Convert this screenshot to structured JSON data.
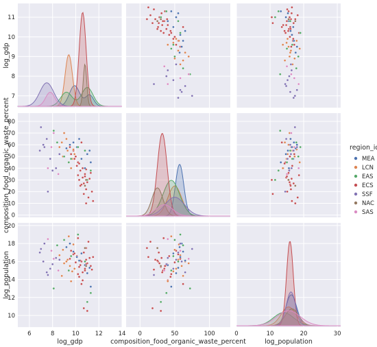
{
  "chart_data": {
    "type": "scatter",
    "layout": "pairplot",
    "style": "darkgrid",
    "grid": true,
    "legend": {
      "title": "region_id",
      "placement": "right",
      "entries": [
        {
          "name": "MEA",
          "color": "#4c72b0"
        },
        {
          "name": "LCN",
          "color": "#dd8452"
        },
        {
          "name": "EAS",
          "color": "#55a868"
        },
        {
          "name": "ECS",
          "color": "#c44e52"
        },
        {
          "name": "SSF",
          "color": "#8172b3"
        },
        {
          "name": "NAC",
          "color": "#937860"
        },
        {
          "name": "SAS",
          "color": "#da8bc3"
        }
      ]
    },
    "variables": [
      {
        "key": "log_gdp",
        "label": "log_gdp",
        "range": [
          5,
          14
        ],
        "ticks": [
          6,
          8,
          10,
          12,
          14
        ],
        "diag_ticks": [
          7,
          8,
          9,
          10,
          11
        ]
      },
      {
        "key": "waste",
        "label": "composition_food_organic_waste_percent",
        "range": [
          -20,
          130
        ],
        "ticks": [
          0,
          50,
          100
        ],
        "diag_ticks": [
          0,
          10,
          20,
          30,
          40,
          50,
          60,
          70,
          80
        ]
      },
      {
        "key": "log_population",
        "label": "log_population",
        "range": [
          0,
          31
        ],
        "ticks": [
          0,
          10,
          20,
          30
        ],
        "diag_ticks": [
          10,
          12,
          14,
          16,
          18,
          20
        ]
      }
    ],
    "row_ranges": [
      [
        6.4,
        11.7
      ],
      [
        -2,
        87
      ],
      [
        8.7,
        20.3
      ]
    ],
    "row_ticks": [
      [
        7,
        8,
        9,
        10,
        11
      ],
      [
        0,
        10,
        20,
        30,
        40,
        50,
        60,
        70,
        80
      ],
      [
        10,
        12,
        14,
        16,
        18,
        20
      ]
    ],
    "kde": [
      {
        "var": "log_gdp",
        "series": [
          {
            "name": "MEA",
            "peaks": [
              [
                9.9,
                0.22,
                0.45
              ],
              [
                11.2,
                0.12,
                0.35
              ]
            ]
          },
          {
            "name": "LCN",
            "peaks": [
              [
                9.4,
                0.55,
                0.32
              ]
            ]
          },
          {
            "name": "EAS",
            "peaks": [
              [
                9.2,
                0.15,
                0.5
              ],
              [
                11.0,
                0.2,
                0.5
              ]
            ]
          },
          {
            "name": "ECS",
            "peaks": [
              [
                10.6,
                1.0,
                0.3
              ]
            ]
          },
          {
            "name": "SSF",
            "peaks": [
              [
                7.5,
                0.25,
                0.6
              ]
            ]
          },
          {
            "name": "NAC",
            "peaks": [
              [
                10.8,
                0.45,
                0.15
              ]
            ]
          },
          {
            "name": "SAS",
            "peaks": [
              [
                7.8,
                0.15,
                0.4
              ]
            ]
          }
        ]
      },
      {
        "var": "waste",
        "series": [
          {
            "name": "MEA",
            "peaks": [
              [
                57,
                0.55,
                6
              ]
            ]
          },
          {
            "name": "LCN",
            "peaks": [
              [
                50,
                0.32,
                10
              ]
            ]
          },
          {
            "name": "EAS",
            "peaks": [
              [
                45,
                0.38,
                12
              ]
            ]
          },
          {
            "name": "ECS",
            "peaks": [
              [
                32,
                0.88,
                7
              ]
            ]
          },
          {
            "name": "SSF",
            "peaks": [
              [
                50,
                0.2,
                14
              ]
            ]
          },
          {
            "name": "NAC",
            "peaks": [
              [
                25,
                0.3,
                8
              ]
            ]
          },
          {
            "name": "SAS",
            "peaks": [
              [
                35,
                0.12,
                12
              ]
            ]
          }
        ]
      },
      {
        "var": "log_population",
        "series": [
          {
            "name": "MEA",
            "peaks": [
              [
                16.3,
                0.33,
                1.6
              ]
            ]
          },
          {
            "name": "LCN",
            "peaks": [
              [
                15.5,
                0.2,
                2.2
              ]
            ]
          },
          {
            "name": "EAS",
            "peaks": [
              [
                14.0,
                0.14,
                3.0
              ]
            ]
          },
          {
            "name": "ECS",
            "peaks": [
              [
                15.9,
                0.9,
                1.0
              ]
            ]
          },
          {
            "name": "SSF",
            "peaks": [
              [
                16.2,
                0.36,
                1.4
              ]
            ]
          },
          {
            "name": "NAC",
            "peaks": [
              [
                16.5,
                0.18,
                2.0
              ]
            ]
          },
          {
            "name": "SAS",
            "peaks": [
              [
                15.5,
                0.16,
                3.5
              ]
            ]
          }
        ]
      }
    ],
    "points": [
      {
        "region": "ECS",
        "log_gdp": 10.3,
        "waste": 30,
        "log_population": 15.4
      },
      {
        "region": "ECS",
        "log_gdp": 10.5,
        "waste": 26,
        "log_population": 16.0
      },
      {
        "region": "ECS",
        "log_gdp": 10.8,
        "waste": 35,
        "log_population": 15.2
      },
      {
        "region": "ECS",
        "log_gdp": 10.1,
        "waste": 42,
        "log_population": 16.6
      },
      {
        "region": "ECS",
        "log_gdp": 11.0,
        "waste": 28,
        "log_population": 15.8
      },
      {
        "region": "ECS",
        "log_gdp": 10.6,
        "waste": 32,
        "log_population": 14.8
      },
      {
        "region": "ECS",
        "log_gdp": 10.9,
        "waste": 22,
        "log_population": 16.2
      },
      {
        "region": "ECS",
        "log_gdp": 10.4,
        "waste": 38,
        "log_population": 15.6
      },
      {
        "region": "ECS",
        "log_gdp": 11.2,
        "waste": 31,
        "log_population": 16.4
      },
      {
        "region": "ECS",
        "log_gdp": 10.2,
        "waste": 45,
        "log_population": 14.6
      },
      {
        "region": "ECS",
        "log_gdp": 10.7,
        "waste": 27,
        "log_population": 17.0
      },
      {
        "region": "ECS",
        "log_gdp": 11.4,
        "waste": 20,
        "log_population": 15.1
      },
      {
        "region": "ECS",
        "log_gdp": 9.8,
        "waste": 55,
        "log_population": 16.8
      },
      {
        "region": "ECS",
        "log_gdp": 10.0,
        "waste": 50,
        "log_population": 15.9
      },
      {
        "region": "ECS",
        "log_gdp": 10.6,
        "waste": 40,
        "log_population": 13.9
      },
      {
        "region": "ECS",
        "log_gdp": 9.5,
        "waste": 58,
        "log_population": 16.3
      },
      {
        "region": "ECS",
        "log_gdp": 11.1,
        "waste": 15,
        "log_population": 18.2
      },
      {
        "region": "ECS",
        "log_gdp": 10.8,
        "waste": 33,
        "log_population": 15.0
      },
      {
        "region": "ECS",
        "log_gdp": 10.9,
        "waste": 10,
        "log_population": 17.5
      },
      {
        "region": "ECS",
        "log_gdp": 11.3,
        "waste": 36,
        "log_population": 15.5
      },
      {
        "region": "ECS",
        "log_gdp": 9.9,
        "waste": 48,
        "log_population": 16.9
      },
      {
        "region": "ECS",
        "log_gdp": 10.4,
        "waste": 25,
        "log_population": 16.1
      },
      {
        "region": "ECS",
        "log_gdp": 10.5,
        "waste": 62,
        "log_population": 13.5
      },
      {
        "region": "ECS",
        "log_gdp": 11.0,
        "waste": 30,
        "log_population": 10.5
      },
      {
        "region": "ECS",
        "log_gdp": 10.7,
        "waste": 18,
        "log_population": 10.8
      },
      {
        "region": "ECS",
        "log_gdp": 9.6,
        "waste": 52,
        "log_population": 17.2
      },
      {
        "region": "ECS",
        "log_gdp": 10.2,
        "waste": 34,
        "log_population": 18.6
      },
      {
        "region": "ECS",
        "log_gdp": 11.5,
        "waste": 12,
        "log_population": 16.5
      },
      {
        "region": "ECS",
        "log_gdp": 10.3,
        "waste": 44,
        "log_population": 14.3
      },
      {
        "region": "ECS",
        "log_gdp": 10.9,
        "waste": 39,
        "log_population": 15.7
      },
      {
        "region": "LCN",
        "log_gdp": 9.3,
        "waste": 55,
        "log_population": 16.2
      },
      {
        "region": "LCN",
        "log_gdp": 9.5,
        "waste": 60,
        "log_population": 15.5
      },
      {
        "region": "LCN",
        "log_gdp": 8.9,
        "waste": 50,
        "log_population": 17.3
      },
      {
        "region": "LCN",
        "log_gdp": 9.7,
        "waste": 48,
        "log_population": 14.9
      },
      {
        "region": "LCN",
        "log_gdp": 9.2,
        "waste": 65,
        "log_population": 16.0
      },
      {
        "region": "LCN",
        "log_gdp": 9.9,
        "waste": 52,
        "log_population": 15.2
      },
      {
        "region": "LCN",
        "log_gdp": 9.4,
        "waste": 45,
        "log_population": 18.8
      },
      {
        "region": "LCN",
        "log_gdp": 8.6,
        "waste": 58,
        "log_population": 16.7
      },
      {
        "region": "LCN",
        "log_gdp": 9.6,
        "waste": 40,
        "log_population": 13.8
      },
      {
        "region": "LCN",
        "log_gdp": 9.0,
        "waste": 70,
        "log_population": 15.8
      },
      {
        "region": "LCN",
        "log_gdp": 9.8,
        "waste": 56,
        "log_population": 17.9
      },
      {
        "region": "LCN",
        "log_gdp": 8.8,
        "waste": 62,
        "log_population": 14.4
      },
      {
        "region": "MEA",
        "log_gdp": 10.1,
        "waste": 58,
        "log_population": 16.5
      },
      {
        "region": "MEA",
        "log_gdp": 9.8,
        "waste": 62,
        "log_population": 17.1
      },
      {
        "region": "MEA",
        "log_gdp": 11.2,
        "waste": 55,
        "log_population": 15.3
      },
      {
        "region": "MEA",
        "log_gdp": 10.5,
        "waste": 48,
        "log_population": 16.9
      },
      {
        "region": "MEA",
        "log_gdp": 9.5,
        "waste": 60,
        "log_population": 18.0
      },
      {
        "region": "MEA",
        "log_gdp": 11.0,
        "waste": 52,
        "log_population": 14.7
      },
      {
        "region": "MEA",
        "log_gdp": 10.3,
        "waste": 65,
        "log_population": 16.1
      },
      {
        "region": "MEA",
        "log_gdp": 9.2,
        "waste": 57,
        "log_population": 17.6
      },
      {
        "region": "MEA",
        "log_gdp": 10.8,
        "waste": 40,
        "log_population": 15.6
      },
      {
        "region": "MEA",
        "log_gdp": 11.3,
        "waste": 45,
        "log_population": 13.2
      },
      {
        "region": "EAS",
        "log_gdp": 9.0,
        "waste": 50,
        "log_population": 18.4
      },
      {
        "region": "EAS",
        "log_gdp": 10.8,
        "waste": 55,
        "log_population": 16.0
      },
      {
        "region": "EAS",
        "log_gdp": 11.3,
        "waste": 38,
        "log_population": 12.5
      },
      {
        "region": "EAS",
        "log_gdp": 8.4,
        "waste": 62,
        "log_population": 17.8
      },
      {
        "region": "EAS",
        "log_gdp": 9.4,
        "waste": 45,
        "log_population": 15.0
      },
      {
        "region": "EAS",
        "log_gdp": 11.0,
        "waste": 30,
        "log_population": 11.5
      },
      {
        "region": "EAS",
        "log_gdp": 10.2,
        "waste": 58,
        "log_population": 19.0
      },
      {
        "region": "EAS",
        "log_gdp": 8.1,
        "waste": 72,
        "log_population": 13.0
      },
      {
        "region": "EAS",
        "log_gdp": 9.6,
        "waste": 48,
        "log_population": 16.6
      },
      {
        "region": "SSF",
        "log_gdp": 7.2,
        "waste": 60,
        "log_population": 16.0
      },
      {
        "region": "SSF",
        "log_gdp": 7.8,
        "waste": 48,
        "log_population": 15.2
      },
      {
        "region": "SSF",
        "log_gdp": 6.9,
        "waste": 55,
        "log_population": 17.0
      },
      {
        "region": "SSF",
        "log_gdp": 8.3,
        "waste": 40,
        "log_population": 16.4
      },
      {
        "region": "SSF",
        "log_gdp": 7.5,
        "waste": 65,
        "log_population": 14.8
      },
      {
        "region": "SSF",
        "log_gdp": 8.0,
        "waste": 38,
        "log_population": 15.7
      },
      {
        "region": "SSF",
        "log_gdp": 7.0,
        "waste": 75,
        "log_population": 17.4
      },
      {
        "region": "SSF",
        "log_gdp": 8.6,
        "waste": 52,
        "log_population": 16.2
      },
      {
        "region": "SSF",
        "log_gdp": 7.6,
        "waste": 20,
        "log_population": 14.5
      },
      {
        "region": "SSF",
        "log_gdp": 7.3,
        "waste": 58,
        "log_population": 18.0
      },
      {
        "region": "NAC",
        "log_gdp": 10.8,
        "waste": 25,
        "log_population": 17.5
      },
      {
        "region": "NAC",
        "log_gdp": 10.9,
        "waste": 30,
        "log_population": 15.5
      },
      {
        "region": "SAS",
        "log_gdp": 7.6,
        "waste": 40,
        "log_population": 18.5
      },
      {
        "region": "SAS",
        "log_gdp": 8.1,
        "waste": 70,
        "log_population": 16.3
      },
      {
        "region": "SAS",
        "log_gdp": 8.5,
        "waste": 35,
        "log_population": 15.0
      },
      {
        "region": "SAS",
        "log_gdp": 7.9,
        "waste": 58,
        "log_population": 17.2
      }
    ]
  }
}
